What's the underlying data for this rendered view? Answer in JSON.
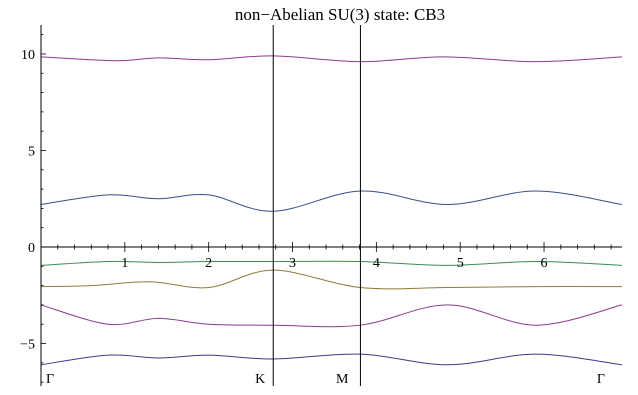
{
  "chart_data": {
    "type": "line",
    "title": "non−Abelian SU(3) state: CB3",
    "xlabel": "",
    "ylabel": "",
    "xlim": [
      0,
      6.93
    ],
    "ylim": [
      -7.2,
      11.5
    ],
    "x_ticks": [
      1,
      2,
      3,
      4,
      5,
      6
    ],
    "x_tick_labels": [
      "1",
      "2",
      "3",
      "4",
      "5",
      "6"
    ],
    "y_ticks": [
      -5,
      0,
      5,
      10
    ],
    "y_tick_labels": [
      "−5",
      "0",
      "5",
      "10"
    ],
    "symmetry_points": [
      {
        "label": "Γ",
        "x": 0
      },
      {
        "label": "K",
        "x": 2.77
      },
      {
        "label": "M",
        "x": 3.81
      },
      {
        "label": "Γ",
        "x": 6.93
      }
    ],
    "vertical_lines_x": [
      2.77,
      3.81
    ],
    "grid": false,
    "series": [
      {
        "color": "#8c3c8c",
        "x": [
          0,
          0.9,
          1.4,
          2.0,
          2.77,
          3.81,
          4.8,
          5.9,
          6.93
        ],
        "y": [
          9.85,
          9.65,
          9.8,
          9.7,
          9.9,
          9.6,
          9.85,
          9.6,
          9.85
        ]
      },
      {
        "color": "#3a4f8c",
        "x": [
          0,
          0.8,
          1.4,
          2.0,
          2.77,
          3.81,
          4.85,
          5.9,
          6.93
        ],
        "y": [
          2.2,
          2.7,
          2.5,
          2.7,
          1.85,
          2.9,
          2.2,
          2.9,
          2.2
        ]
      },
      {
        "color": "#3c8c4c",
        "x": [
          0,
          0.8,
          1.4,
          2.0,
          2.77,
          3.81,
          4.85,
          5.9,
          6.93
        ],
        "y": [
          -0.95,
          -0.75,
          -0.8,
          -0.75,
          -0.75,
          -0.75,
          -0.95,
          -0.75,
          -0.95
        ]
      },
      {
        "color": "#8c7c3c",
        "x": [
          0,
          0.6,
          1.3,
          2.0,
          2.77,
          3.81,
          4.85,
          5.9,
          6.93
        ],
        "y": [
          -2.05,
          -2.0,
          -1.8,
          -2.1,
          -1.2,
          -2.1,
          -2.1,
          -2.05,
          -2.05
        ]
      },
      {
        "color": "#8c3c8c",
        "x": [
          0,
          0.8,
          1.4,
          2.0,
          2.77,
          3.81,
          4.85,
          5.9,
          6.93
        ],
        "y": [
          -3.0,
          -4.0,
          -3.7,
          -4.0,
          -4.05,
          -4.05,
          -3.0,
          -4.05,
          -3.0
        ]
      },
      {
        "color": "#3a3a8c",
        "x": [
          0,
          0.8,
          1.4,
          2.0,
          2.77,
          3.81,
          4.85,
          5.9,
          6.93
        ],
        "y": [
          -6.1,
          -5.6,
          -5.75,
          -5.6,
          -5.8,
          -5.55,
          -6.1,
          -5.55,
          -6.1
        ]
      }
    ]
  }
}
